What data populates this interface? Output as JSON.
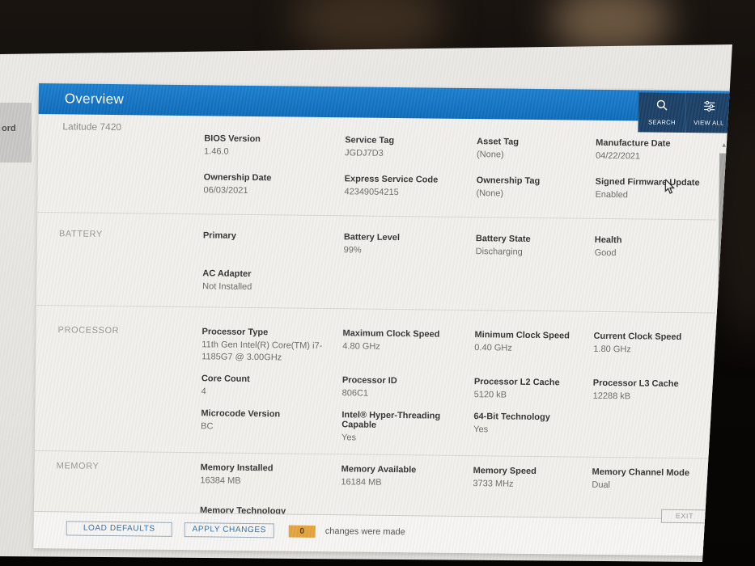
{
  "screen": {
    "desktop_partial_label": "ord"
  },
  "window": {
    "title": "Overview",
    "model": "Latitude 7420",
    "toolbar": {
      "search_label": "SEARCH",
      "view_all_label": "VIEW ALL"
    },
    "sections": [
      {
        "label": "",
        "rows": [
          [
            {
              "label": "BIOS Version",
              "value": "1.46.0"
            },
            {
              "label": "Service Tag",
              "value": "JGDJ7D3"
            },
            {
              "label": "Asset Tag",
              "value": "(None)"
            },
            {
              "label": "Manufacture Date",
              "value": "04/22/2021"
            }
          ],
          [
            {
              "label": "Ownership Date",
              "value": "06/03/2021"
            },
            {
              "label": "Express Service Code",
              "value": "42349054215"
            },
            {
              "label": "Ownership Tag",
              "value": "(None)"
            },
            {
              "label": "Signed Firmware Update",
              "value": "Enabled"
            }
          ]
        ]
      },
      {
        "label": "BATTERY",
        "rows": [
          [
            {
              "label": "Primary",
              "value": ""
            },
            {
              "label": "Battery Level",
              "value": "99%"
            },
            {
              "label": "Battery State",
              "value": "Discharging"
            },
            {
              "label": "Health",
              "value": "Good"
            }
          ],
          [
            {
              "label": "AC Adapter",
              "value": "Not Installed"
            },
            null,
            null,
            null
          ]
        ]
      },
      {
        "label": "PROCESSOR",
        "rows": [
          [
            {
              "label": "Processor Type",
              "value": "11th Gen Intel(R) Core(TM) i7-1185G7 @ 3.00GHz"
            },
            {
              "label": "Maximum Clock Speed",
              "value": "4.80 GHz"
            },
            {
              "label": "Minimum Clock Speed",
              "value": "0.40 GHz"
            },
            {
              "label": "Current Clock Speed",
              "value": "1.80 GHz"
            }
          ],
          [
            {
              "label": "Core Count",
              "value": "4"
            },
            {
              "label": "Processor ID",
              "value": "806C1"
            },
            {
              "label": "Processor L2 Cache",
              "value": "5120 kB"
            },
            {
              "label": "Processor L3 Cache",
              "value": "12288 kB"
            }
          ],
          [
            {
              "label": "Microcode Version",
              "value": "BC"
            },
            {
              "label": "Intel® Hyper-Threading Capable",
              "value": "Yes"
            },
            {
              "label": "64-Bit Technology",
              "value": "Yes"
            },
            null
          ]
        ]
      },
      {
        "label": "MEMORY",
        "rows": [
          [
            {
              "label": "Memory Installed",
              "value": "16384 MB"
            },
            {
              "label": "Memory Available",
              "value": "16184 MB"
            },
            {
              "label": "Memory Speed",
              "value": "3733 MHz"
            },
            {
              "label": "Memory Channel Mode",
              "value": "Dual"
            }
          ],
          [
            {
              "label": "Memory Technology",
              "value": ""
            },
            null,
            null,
            null
          ]
        ]
      }
    ],
    "footer": {
      "load_defaults_label": "LOAD DEFAULTS",
      "apply_changes_label": "APPLY CHANGES",
      "changes_count": "0",
      "changes_text": "changes were made",
      "exit_label": "EXIT"
    }
  },
  "icons": {
    "search": "magnifier",
    "view_all": "filter-sliders",
    "scroll_up_glyph": "▲",
    "scroll_down_glyph": "▼"
  },
  "colors": {
    "header_blue": "#1174c4",
    "toolbar_navy": "#1b3f66",
    "badge_orange": "#e3a33d",
    "accent_blue": "#2e6da8"
  }
}
